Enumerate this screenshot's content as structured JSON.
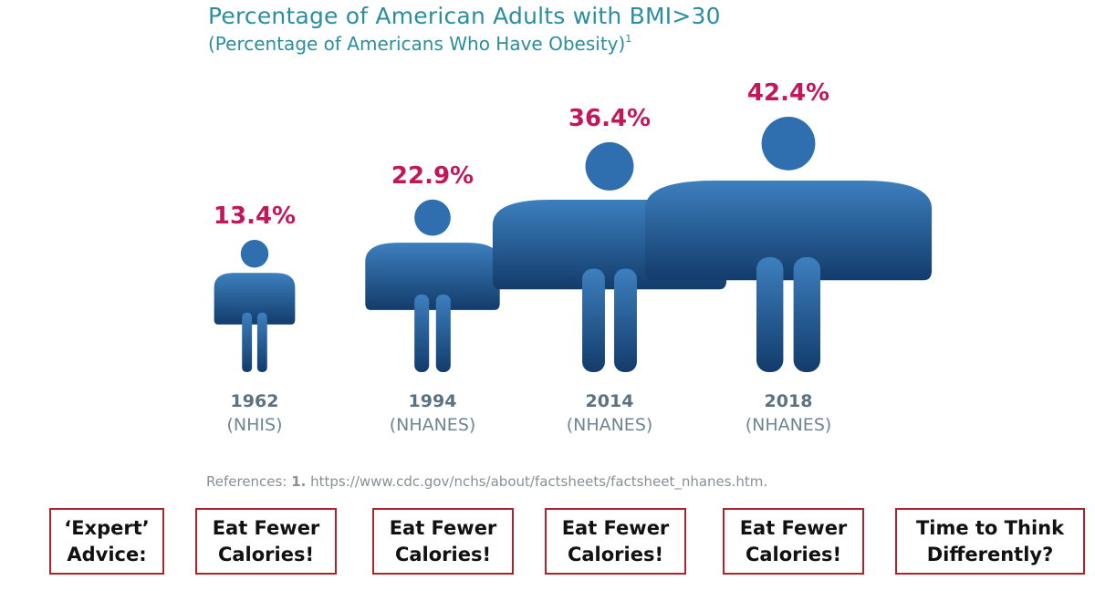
{
  "header": {
    "title": "Percentage of American Adults with BMI>30",
    "subtitle": "(Percentage of Americans Who Have Obesity)",
    "subtitle_footnote": "1"
  },
  "chart_data": {
    "type": "bar",
    "title": "Percentage of American Adults with BMI>30",
    "categories": [
      "1962",
      "1994",
      "2014",
      "2018"
    ],
    "sources": [
      "(NHIS)",
      "(NHANES)",
      "(NHANES)",
      "(NHANES)"
    ],
    "values": [
      13.4,
      22.9,
      36.4,
      42.4
    ],
    "value_labels": [
      "13.4%",
      "22.9%",
      "36.4%",
      "42.4%"
    ],
    "unit": "%",
    "grid": false,
    "legend": "none",
    "colors": {
      "figure_top": "#3d7fbe",
      "figure_bottom": "#123c6b",
      "value_label": "#c2185b",
      "year_label": "#5c7280",
      "source_label": "#6f8590"
    }
  },
  "reference": {
    "prefix": "References:",
    "number": "1.",
    "url": "https://www.cdc.gov/nchs/about/factsheets/factsheet_nhanes.htm."
  },
  "annotations": [
    {
      "text": "‘Expert’\nAdvice:"
    },
    {
      "text": "Eat Fewer\nCalories!"
    },
    {
      "text": "Eat Fewer\nCalories!"
    },
    {
      "text": "Eat Fewer\nCalories!"
    },
    {
      "text": "Eat Fewer\nCalories!"
    },
    {
      "text": "Time to Think\nDifferently?"
    }
  ],
  "annotation_border_color": "#b3222a"
}
